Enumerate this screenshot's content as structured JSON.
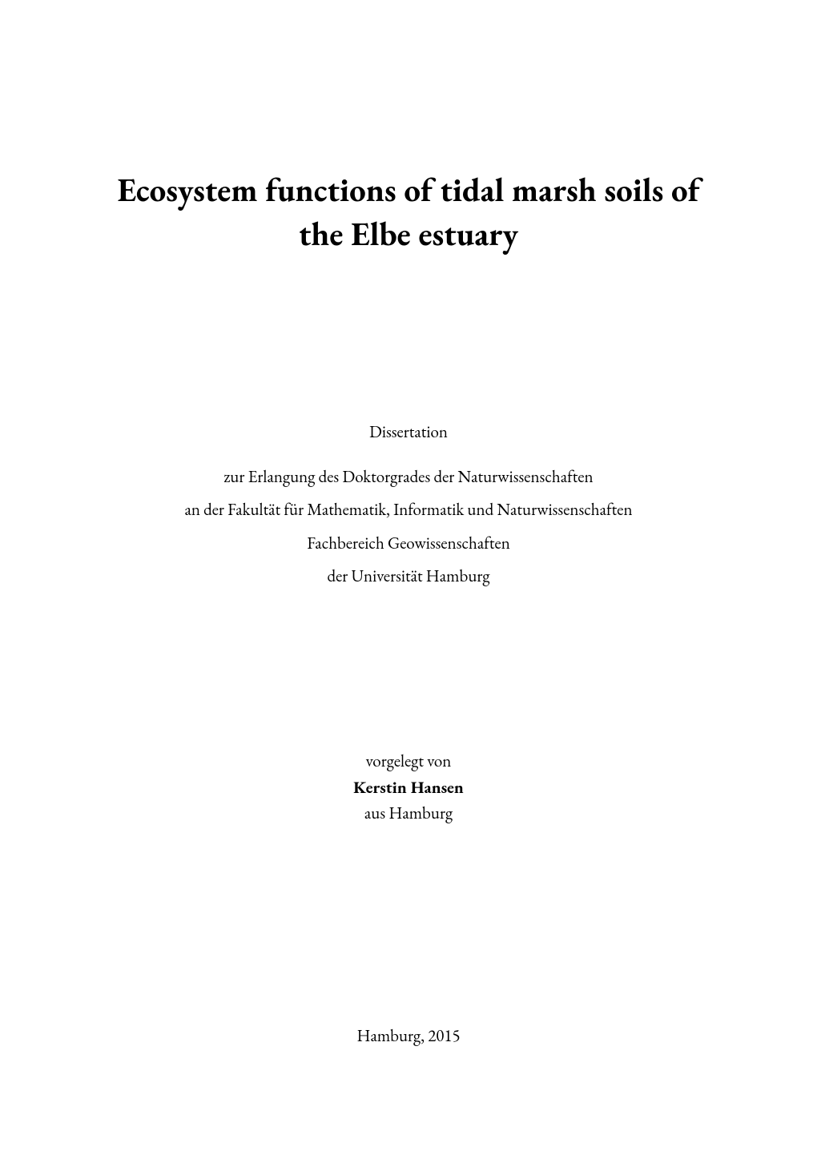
{
  "page": {
    "background_color": "#ffffff",
    "text_color": "#000000",
    "font_family": "Garamond, Times New Roman, serif"
  },
  "title": {
    "line1": "Ecosystem functions of tidal marsh soils of",
    "line2": "the Elbe estuary",
    "font_size_pt": 30,
    "font_weight": 700
  },
  "dissertation": {
    "label": "Dissertation",
    "line1": "zur Erlangung des Doktorgrades der Naturwissenschaften",
    "line2": "an der Fakultät für Mathematik, Informatik und Naturwissenschaften",
    "line3": "Fachbereich Geowissenschaften",
    "line4": "der Universität Hamburg",
    "font_size_pt": 16,
    "font_weight": 400
  },
  "author": {
    "submitted_by_label": "vorgelegt von",
    "name": "Kerstin Hansen",
    "from_label": "aus Hamburg",
    "name_font_weight": 700,
    "font_size_pt": 16
  },
  "footer": {
    "place_year": "Hamburg, 2015",
    "font_size_pt": 16
  }
}
